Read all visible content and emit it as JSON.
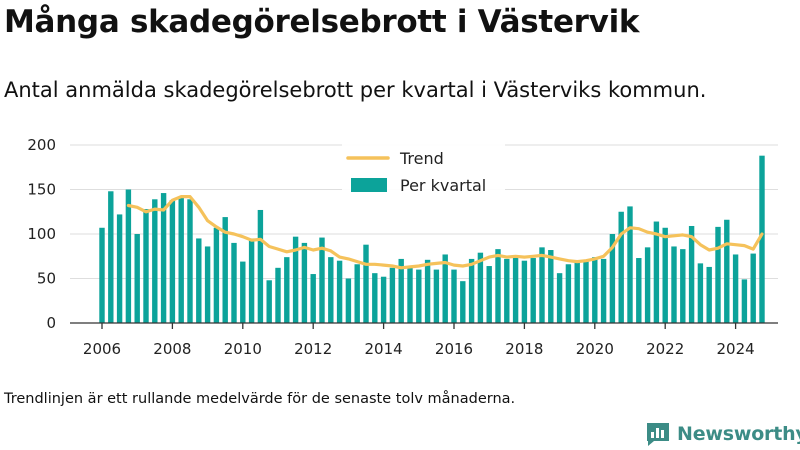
{
  "title": "Många skadegörelsebrott i Västervik",
  "subtitle": "Antal anmälda skadegörelsebrott per kvartal i Västerviks kommun.",
  "footnote": "Trendlinjen är ett rullande medelvärde för de senaste tolv månaderna.",
  "brand": "Newsworthy",
  "colors": {
    "bar": "#0ca39a",
    "trend": "#f5c25b",
    "logo": "#3c8c86"
  },
  "chart_data": {
    "type": "bar",
    "legend": {
      "placement": "top-center",
      "entries": [
        "Trend",
        "Per kvartal"
      ]
    },
    "grid": true,
    "xlim": [
      2005,
      2025.5
    ],
    "ylim": [
      0,
      200
    ],
    "x_ticks": [
      2006,
      2008,
      2010,
      2012,
      2014,
      2016,
      2018,
      2020,
      2022,
      2024
    ],
    "y_ticks": [
      0,
      50,
      100,
      150,
      200
    ],
    "start_year": 2006,
    "series": [
      {
        "name": "Per kvartal",
        "kind": "bar",
        "values": [
          107,
          148,
          122,
          150,
          100,
          128,
          139,
          146,
          138,
          141,
          139,
          95,
          86,
          107,
          119,
          90,
          69,
          95,
          127,
          48,
          62,
          74,
          97,
          90,
          55,
          96,
          74,
          70,
          50,
          66,
          88,
          56,
          52,
          62,
          72,
          63,
          60,
          71,
          60,
          77,
          60,
          47,
          72,
          79,
          64,
          83,
          72,
          74,
          70,
          73,
          85,
          82,
          56,
          66,
          70,
          71,
          74,
          72,
          100,
          125,
          131,
          73,
          85,
          114,
          107,
          86,
          83,
          109,
          67,
          63,
          108,
          116,
          77,
          49,
          78,
          188
        ]
      },
      {
        "name": "Trend",
        "kind": "line",
        "values": [
          null,
          null,
          null,
          132,
          130,
          125,
          128,
          127,
          138,
          142,
          142,
          130,
          115,
          108,
          102,
          100,
          97,
          93,
          94,
          86,
          83,
          80,
          82,
          85,
          82,
          84,
          81,
          74,
          72,
          69,
          66,
          66,
          65,
          64,
          62,
          63,
          64,
          66,
          67,
          68,
          65,
          64,
          66,
          70,
          74,
          76,
          74,
          75,
          74,
          75,
          76,
          74,
          72,
          70,
          69,
          70,
          72,
          75,
          85,
          100,
          107,
          106,
          102,
          100,
          97,
          98,
          99,
          97,
          88,
          82,
          84,
          89,
          88,
          87,
          83,
          100
        ]
      }
    ]
  }
}
